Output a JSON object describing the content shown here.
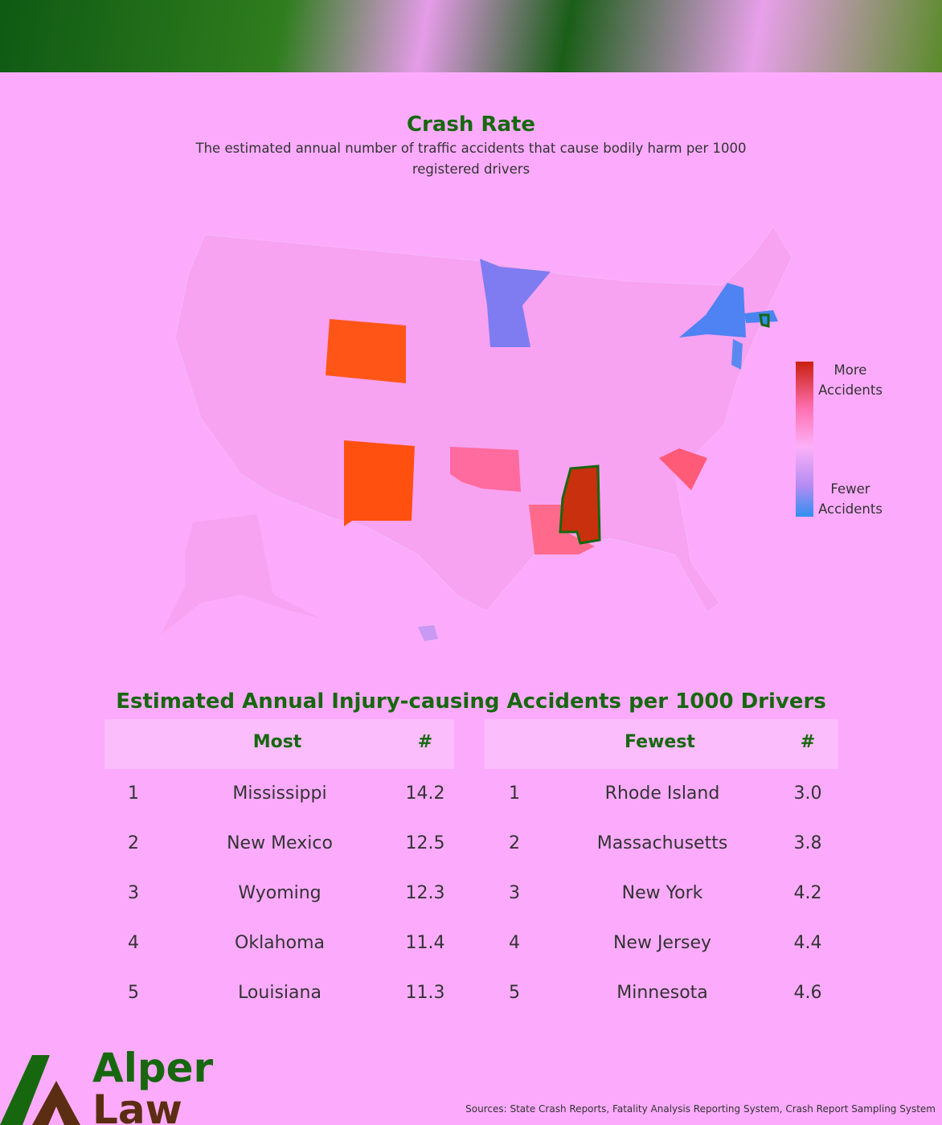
{
  "header": {
    "title": "Crash Rate",
    "subtitle": "The estimated annual number of traffic accidents that cause bodily harm  per 1000 registered drivers"
  },
  "legend": {
    "high": "More Accidents",
    "low": "Fewer Accidents"
  },
  "table": {
    "title": "Estimated Annual Injury-causing Accidents per 1000 Drivers",
    "most": {
      "headers": [
        "Most",
        "#"
      ],
      "rows": [
        [
          "1",
          "Mississippi",
          "14.2"
        ],
        [
          "2",
          "New Mexico",
          "12.5"
        ],
        [
          "3",
          "Wyoming",
          "12.3"
        ],
        [
          "4",
          "Oklahoma",
          "11.4"
        ],
        [
          "5",
          "Louisiana",
          "11.3"
        ]
      ]
    },
    "fewest": {
      "headers": [
        "Fewest",
        "#"
      ],
      "rows": [
        [
          "1",
          "Rhode Island",
          "3.0"
        ],
        [
          "2",
          "Massachusetts",
          "3.8"
        ],
        [
          "3",
          "New York",
          "4.2"
        ],
        [
          "4",
          "New Jersey",
          "4.4"
        ],
        [
          "5",
          "Minnesota",
          "4.6"
        ]
      ]
    }
  },
  "logo": {
    "line1": "Alper",
    "line2": "Law"
  },
  "sources": "Sources: State Crash Reports, Fatality Analysis Reporting System, Crash Report Sampling System"
}
